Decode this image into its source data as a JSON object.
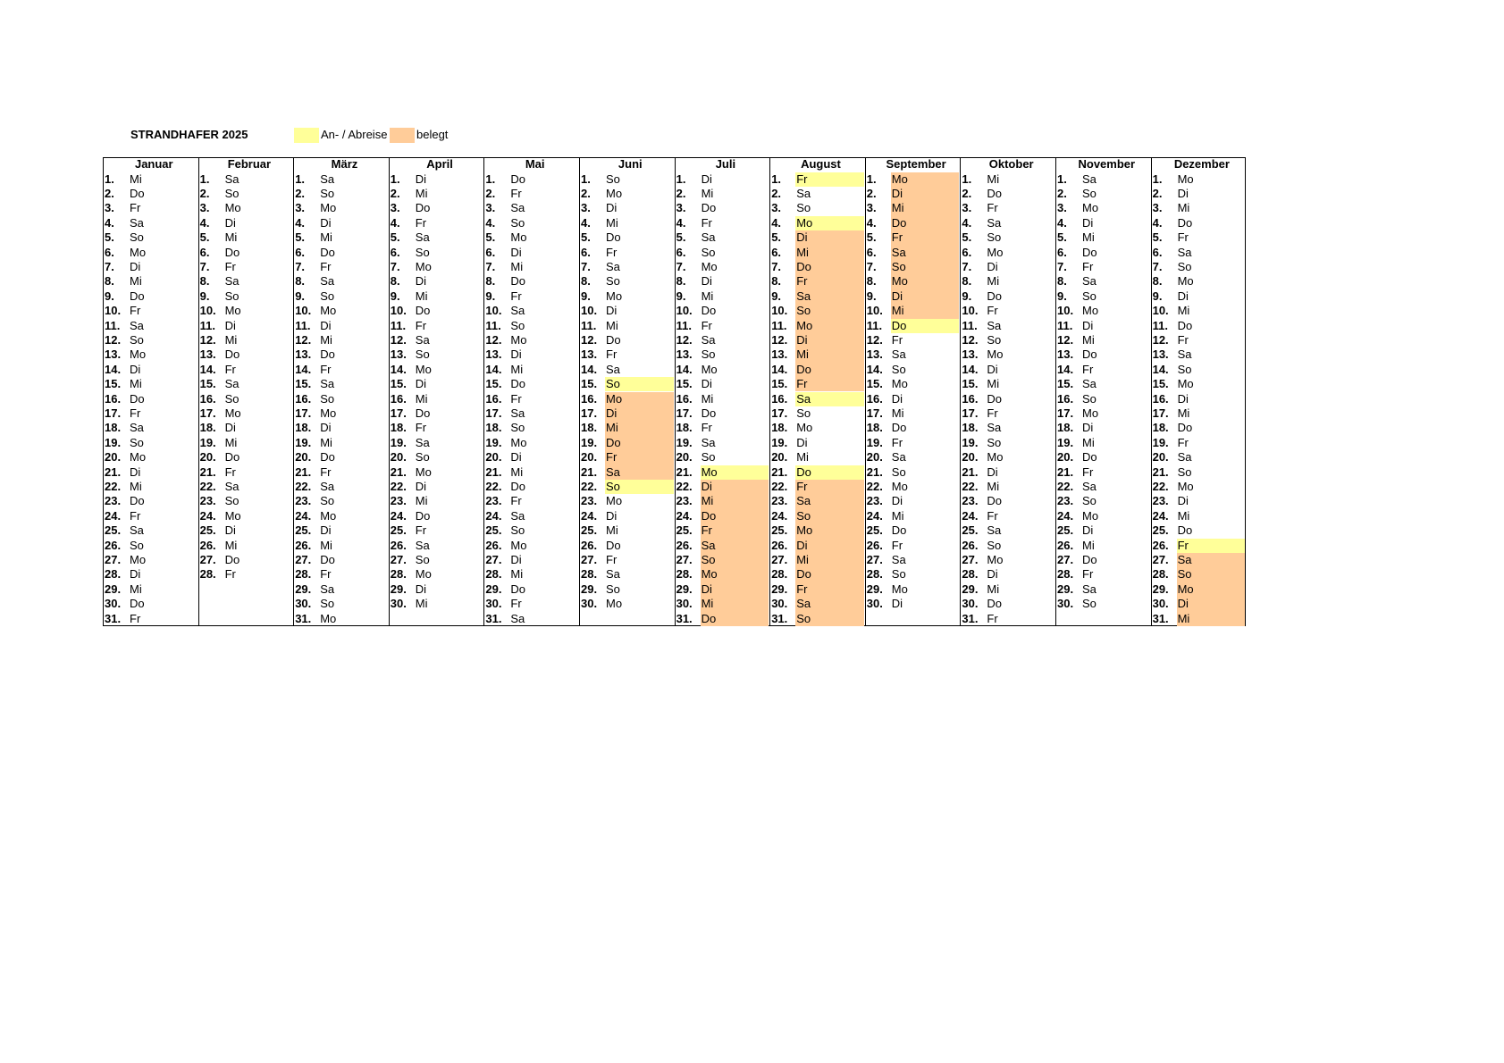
{
  "header": {
    "title": "STRANDHAFER 2025"
  },
  "legend": [
    {
      "label": "An- / Abreise",
      "color": "#ffff99"
    },
    {
      "label": "belegt",
      "color": "#ffcc99"
    }
  ],
  "months": [
    {
      "name": "Januar",
      "days": [
        "1.",
        "2.",
        "3.",
        "4.",
        "5.",
        "6.",
        "7.",
        "8.",
        "9.",
        "10.",
        "11.",
        "12.",
        "13.",
        "14.",
        "15.",
        "16.",
        "17.",
        "18.",
        "19.",
        "20.",
        "21.",
        "22.",
        "23.",
        "24.",
        "25.",
        "26.",
        "27.",
        "28.",
        "29.",
        "30.",
        "31."
      ],
      "weekdays": [
        "Mi",
        "Do",
        "Fr",
        "Sa",
        "So",
        "Mo",
        "Di",
        "Mi",
        "Do",
        "Fr",
        "Sa",
        "So",
        "Mo",
        "Di",
        "Mi",
        "Do",
        "Fr",
        "Sa",
        "So",
        "Mo",
        "Di",
        "Mi",
        "Do",
        "Fr",
        "Sa",
        "So",
        "Mo",
        "Di",
        "Mi",
        "Do",
        "Fr"
      ],
      "highlights": []
    },
    {
      "name": "Februar",
      "days": [
        "1.",
        "2.",
        "3.",
        "4.",
        "5.",
        "6.",
        "7.",
        "8.",
        "9.",
        "10.",
        "11.",
        "12.",
        "13.",
        "14.",
        "15.",
        "16.",
        "17.",
        "18.",
        "19.",
        "20.",
        "21.",
        "22.",
        "23.",
        "24.",
        "25.",
        "26.",
        "27.",
        "28."
      ],
      "weekdays": [
        "Sa",
        "So",
        "Mo",
        "Di",
        "Mi",
        "Do",
        "Fr",
        "Sa",
        "So",
        "Mo",
        "Di",
        "Mi",
        "Do",
        "Fr",
        "Sa",
        "So",
        "Mo",
        "Di",
        "Mi",
        "Do",
        "Fr",
        "Sa",
        "So",
        "Mo",
        "Di",
        "Mi",
        "Do",
        "Fr"
      ],
      "highlights": []
    },
    {
      "name": "März",
      "days": [
        "1.",
        "2.",
        "3.",
        "4.",
        "5.",
        "6.",
        "7.",
        "8.",
        "9.",
        "10.",
        "11.",
        "12.",
        "13.",
        "14.",
        "15.",
        "16.",
        "17.",
        "18.",
        "19.",
        "20.",
        "21.",
        "22.",
        "23.",
        "24.",
        "25.",
        "26.",
        "27.",
        "28.",
        "29.",
        "30.",
        "31."
      ],
      "weekdays": [
        "Sa",
        "So",
        "Mo",
        "Di",
        "Mi",
        "Do",
        "Fr",
        "Sa",
        "So",
        "Mo",
        "Di",
        "Mi",
        "Do",
        "Fr",
        "Sa",
        "So",
        "Mo",
        "Di",
        "Mi",
        "Do",
        "Fr",
        "Sa",
        "So",
        "Mo",
        "Di",
        "Mi",
        "Do",
        "Fr",
        "Sa",
        "So",
        "Mo"
      ],
      "highlights": []
    },
    {
      "name": "April",
      "days": [
        "1.",
        "2.",
        "3.",
        "4.",
        "5.",
        "6.",
        "7.",
        "8.",
        "9.",
        "10.",
        "11.",
        "12.",
        "13.",
        "14.",
        "15.",
        "16.",
        "17.",
        "18.",
        "19.",
        "20.",
        "21.",
        "22.",
        "23.",
        "24.",
        "25.",
        "26.",
        "27.",
        "28.",
        "29.",
        "30."
      ],
      "weekdays": [
        "Di",
        "Mi",
        "Do",
        "Fr",
        "Sa",
        "So",
        "Mo",
        "Di",
        "Mi",
        "Do",
        "Fr",
        "Sa",
        "So",
        "Mo",
        "Di",
        "Mi",
        "Do",
        "Fr",
        "Sa",
        "So",
        "Mo",
        "Di",
        "Mi",
        "Do",
        "Fr",
        "Sa",
        "So",
        "Mo",
        "Di",
        "Mi"
      ],
      "highlights": []
    },
    {
      "name": "Mai",
      "days": [
        "1.",
        "2.",
        "3.",
        "4.",
        "5.",
        "6.",
        "7.",
        "8.",
        "9.",
        "10.",
        "11.",
        "12.",
        "13.",
        "14.",
        "15.",
        "16.",
        "17.",
        "18.",
        "19.",
        "20.",
        "21.",
        "22.",
        "23.",
        "24.",
        "25.",
        "26.",
        "27.",
        "28.",
        "29.",
        "30.",
        "31."
      ],
      "weekdays": [
        "Do",
        "Fr",
        "Sa",
        "So",
        "Mo",
        "Di",
        "Mi",
        "Do",
        "Fr",
        "Sa",
        "So",
        "Mo",
        "Di",
        "Mi",
        "Do",
        "Fr",
        "Sa",
        "So",
        "Mo",
        "Di",
        "Mi",
        "Do",
        "Fr",
        "Sa",
        "So",
        "Mo",
        "Di",
        "Mi",
        "Do",
        "Fr",
        "Sa"
      ],
      "highlights": []
    },
    {
      "name": "Juni",
      "days": [
        "1.",
        "2.",
        "3.",
        "4.",
        "5.",
        "6.",
        "7.",
        "8.",
        "9.",
        "10.",
        "11.",
        "12.",
        "13.",
        "14.",
        "15.",
        "16.",
        "17.",
        "18.",
        "19.",
        "20.",
        "21.",
        "22.",
        "23.",
        "24.",
        "25.",
        "26.",
        "27.",
        "28.",
        "29.",
        "30."
      ],
      "weekdays": [
        "So",
        "Mo",
        "Di",
        "Mi",
        "Do",
        "Fr",
        "Sa",
        "So",
        "Mo",
        "Di",
        "Mi",
        "Do",
        "Fr",
        "Sa",
        "So",
        "Mo",
        "Di",
        "Mi",
        "Do",
        "Fr",
        "Sa",
        "So",
        "Mo",
        "Di",
        "Mi",
        "Do",
        "Fr",
        "Sa",
        "So",
        "Mo"
      ],
      "highlights": [
        [
          14,
          14,
          0
        ],
        [
          15,
          20,
          1
        ],
        [
          21,
          21,
          0
        ]
      ]
    },
    {
      "name": "Juli",
      "days": [
        "1.",
        "2.",
        "3.",
        "4.",
        "5.",
        "6.",
        "7.",
        "8.",
        "9.",
        "10.",
        "11.",
        "12.",
        "13.",
        "14.",
        "15.",
        "16.",
        "17.",
        "18.",
        "19.",
        "20.",
        "21.",
        "22.",
        "23.",
        "24.",
        "25.",
        "26.",
        "27.",
        "28.",
        "29.",
        "30.",
        "31."
      ],
      "weekdays": [
        "Di",
        "Mi",
        "Do",
        "Fr",
        "Sa",
        "So",
        "Mo",
        "Di",
        "Mi",
        "Do",
        "Fr",
        "Sa",
        "So",
        "Mo",
        "Di",
        "Mi",
        "Do",
        "Fr",
        "Sa",
        "So",
        "Mo",
        "Di",
        "Mi",
        "Do",
        "Fr",
        "Sa",
        "So",
        "Mo",
        "Di",
        "Mi",
        "Do"
      ],
      "highlights": [
        [
          20,
          20,
          0
        ],
        [
          21,
          30,
          1
        ]
      ]
    },
    {
      "name": "August",
      "days": [
        "1.",
        "2.",
        "3.",
        "4.",
        "5.",
        "6.",
        "7.",
        "8.",
        "9.",
        "10.",
        "11.",
        "12.",
        "13.",
        "14.",
        "15.",
        "16.",
        "17.",
        "18.",
        "19.",
        "20.",
        "21.",
        "22.",
        "23.",
        "24.",
        "25.",
        "26.",
        "27.",
        "28.",
        "29.",
        "30.",
        "31."
      ],
      "weekdays": [
        "Fr",
        "Sa",
        "So",
        "Mo",
        "Di",
        "Mi",
        "Do",
        "Fr",
        "Sa",
        "So",
        "Mo",
        "Di",
        "Mi",
        "Do",
        "Fr",
        "Sa",
        "So",
        "Mo",
        "Di",
        "Mi",
        "Do",
        "Fr",
        "Sa",
        "So",
        "Mo",
        "Di",
        "Mi",
        "Do",
        "Fr",
        "Sa",
        "So"
      ],
      "highlights": [
        [
          0,
          0,
          0
        ],
        [
          3,
          3,
          0
        ],
        [
          4,
          14,
          1
        ],
        [
          15,
          15,
          0
        ],
        [
          20,
          20,
          0
        ],
        [
          21,
          30,
          1
        ]
      ]
    },
    {
      "name": "September",
      "days": [
        "1.",
        "2.",
        "3.",
        "4.",
        "5.",
        "6.",
        "7.",
        "8.",
        "9.",
        "10.",
        "11.",
        "12.",
        "13.",
        "14.",
        "15.",
        "16.",
        "17.",
        "18.",
        "19.",
        "20.",
        "21.",
        "22.",
        "23.",
        "24.",
        "25.",
        "26.",
        "27.",
        "28.",
        "29.",
        "30."
      ],
      "weekdays": [
        "Mo",
        "Di",
        "Mi",
        "Do",
        "Fr",
        "Sa",
        "So",
        "Mo",
        "Di",
        "Mi",
        "Do",
        "Fr",
        "Sa",
        "So",
        "Mo",
        "Di",
        "Mi",
        "Do",
        "Fr",
        "Sa",
        "So",
        "Mo",
        "Di",
        "Mi",
        "Do",
        "Fr",
        "Sa",
        "So",
        "Mo",
        "Di"
      ],
      "highlights": [
        [
          0,
          9,
          1
        ],
        [
          10,
          10,
          0
        ]
      ]
    },
    {
      "name": "Oktober",
      "days": [
        "1.",
        "2.",
        "3.",
        "4.",
        "5.",
        "6.",
        "7.",
        "8.",
        "9.",
        "10.",
        "11.",
        "12.",
        "13.",
        "14.",
        "15.",
        "16.",
        "17.",
        "18.",
        "19.",
        "20.",
        "21.",
        "22.",
        "23.",
        "24.",
        "25.",
        "26.",
        "27.",
        "28.",
        "29.",
        "30.",
        "31."
      ],
      "weekdays": [
        "Mi",
        "Do",
        "Fr",
        "Sa",
        "So",
        "Mo",
        "Di",
        "Mi",
        "Do",
        "Fr",
        "Sa",
        "So",
        "Mo",
        "Di",
        "Mi",
        "Do",
        "Fr",
        "Sa",
        "So",
        "Mo",
        "Di",
        "Mi",
        "Do",
        "Fr",
        "Sa",
        "So",
        "Mo",
        "Di",
        "Mi",
        "Do",
        "Fr"
      ],
      "highlights": []
    },
    {
      "name": "November",
      "days": [
        "1.",
        "2.",
        "3.",
        "4.",
        "5.",
        "6.",
        "7.",
        "8.",
        "9.",
        "10.",
        "11.",
        "12.",
        "13.",
        "14.",
        "15.",
        "16.",
        "17.",
        "18.",
        "19.",
        "20.",
        "21.",
        "22.",
        "23.",
        "24.",
        "25.",
        "26.",
        "27.",
        "28.",
        "29.",
        "30."
      ],
      "weekdays": [
        "Sa",
        "So",
        "Mo",
        "Di",
        "Mi",
        "Do",
        "Fr",
        "Sa",
        "So",
        "Mo",
        "Di",
        "Mi",
        "Do",
        "Fr",
        "Sa",
        "So",
        "Mo",
        "Di",
        "Mi",
        "Do",
        "Fr",
        "Sa",
        "So",
        "Mo",
        "Di",
        "Mi",
        "Do",
        "Fr",
        "Sa",
        "So"
      ],
      "highlights": []
    },
    {
      "name": "Dezember",
      "days": [
        "1.",
        "2.",
        "3.",
        "4.",
        "5.",
        "6.",
        "7.",
        "8.",
        "9.",
        "10.",
        "11.",
        "12.",
        "13.",
        "14.",
        "15.",
        "16.",
        "17.",
        "18.",
        "19.",
        "20.",
        "21.",
        "22.",
        "23.",
        "24.",
        "25.",
        "26.",
        "27.",
        "28.",
        "29.",
        "30.",
        "31."
      ],
      "weekdays": [
        "Mo",
        "Di",
        "Mi",
        "Do",
        "Fr",
        "Sa",
        "So",
        "Mo",
        "Di",
        "Mi",
        "Do",
        "Fr",
        "Sa",
        "So",
        "Mo",
        "Di",
        "Mi",
        "Do",
        "Fr",
        "Sa",
        "So",
        "Mo",
        "Di",
        "Mi",
        "Do",
        "Fr",
        "Sa",
        "So",
        "Mo",
        "Di",
        "Mi"
      ],
      "highlights": [
        [
          25,
          25,
          0
        ],
        [
          26,
          30,
          1
        ]
      ]
    }
  ]
}
